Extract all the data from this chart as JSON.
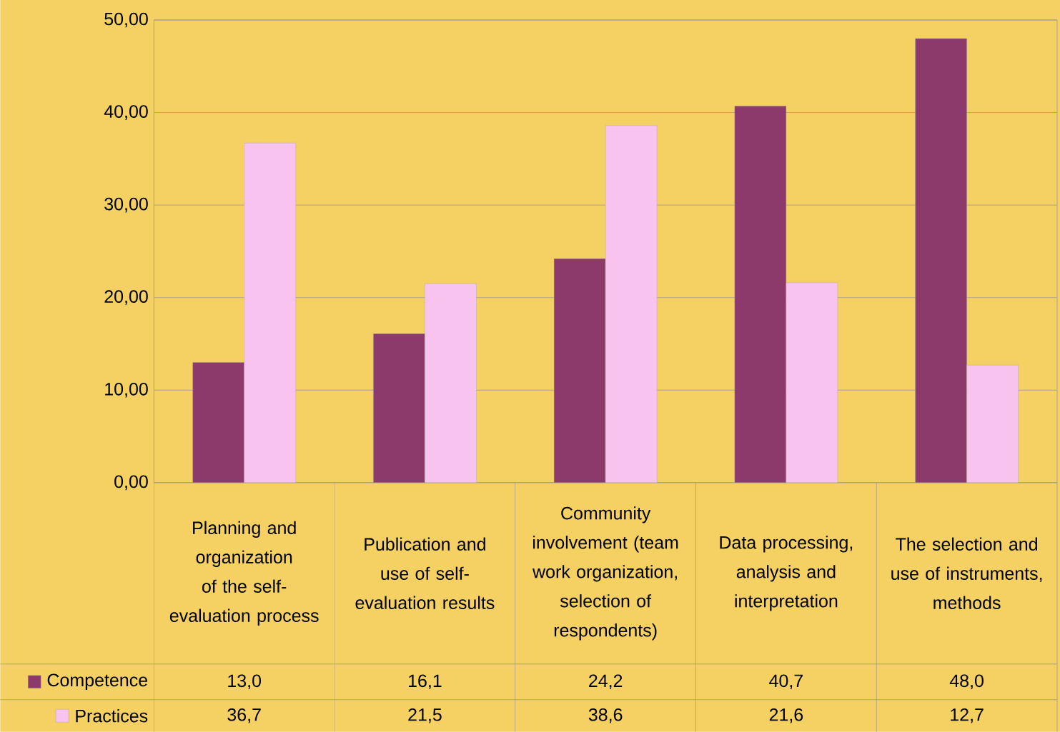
{
  "chart_data": {
    "type": "bar",
    "categories": [
      "Planning and organization of the self-evaluation process",
      "Publication and use of self-evaluation results",
      "Community involvement (team work organization, selection of respondents)",
      "Data processing, analysis and interpretation",
      "The selection and use of instruments, methods"
    ],
    "series": [
      {
        "name": "Competence",
        "color": "#8b3a6b",
        "values": [
          13.0,
          16.1,
          24.2,
          40.7,
          48.0
        ],
        "value_labels": [
          "13,0",
          "16,1",
          "24,2",
          "40,7",
          "48,0"
        ]
      },
      {
        "name": "Practices",
        "color": "#f9c3f0",
        "values": [
          36.7,
          21.5,
          38.6,
          21.6,
          12.7
        ],
        "value_labels": [
          "36,7",
          "21,5",
          "38,6",
          "21,6",
          "12,7"
        ]
      }
    ],
    "ylim": [
      0,
      50
    ],
    "yticks": [
      {
        "value": 0,
        "label": "0,00"
      },
      {
        "value": 10,
        "label": "10,00"
      },
      {
        "value": 20,
        "label": "20,00"
      },
      {
        "value": 30,
        "label": "30,00"
      },
      {
        "value": 40,
        "label": "40,00"
      },
      {
        "value": 50,
        "label": "50,00"
      }
    ],
    "grid": "y",
    "legend": "bottom"
  }
}
